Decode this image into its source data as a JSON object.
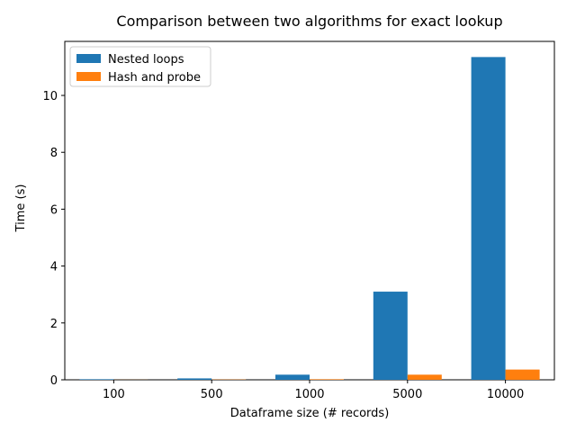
{
  "chart_data": {
    "type": "bar",
    "title": "Comparison between two algorithms for exact lookup",
    "xlabel": "Dataframe size (# records)",
    "ylabel": "Time (s)",
    "categories": [
      "100",
      "500",
      "1000",
      "5000",
      "10000"
    ],
    "series": [
      {
        "name": "Nested loops",
        "color": "#1f77b4",
        "values": [
          0.02,
          0.05,
          0.18,
          3.1,
          11.35
        ]
      },
      {
        "name": "Hash and probe",
        "color": "#ff7f0e",
        "values": [
          0.003,
          0.01,
          0.02,
          0.18,
          0.36
        ]
      }
    ],
    "ylim": [
      0,
      11.9
    ],
    "yticks": [
      0,
      2,
      4,
      6,
      8,
      10
    ],
    "grid": false,
    "legend_position": "top-left"
  }
}
